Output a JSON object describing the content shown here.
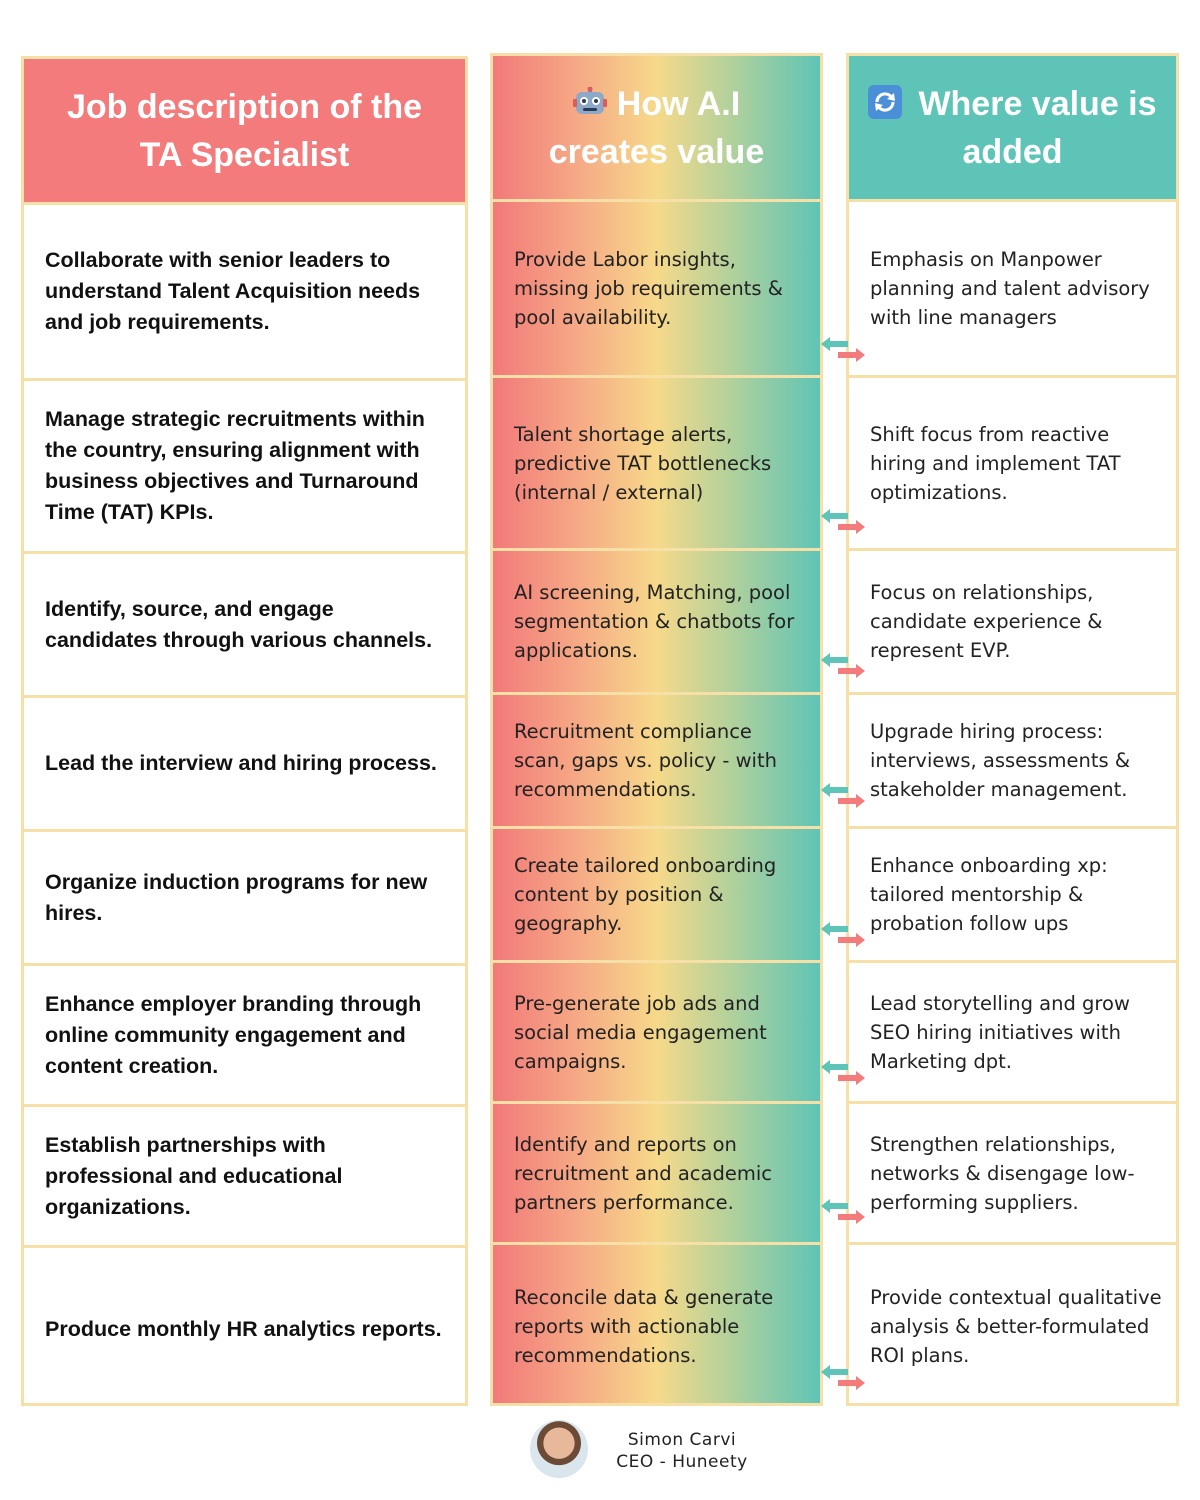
{
  "columns": {
    "job": {
      "title": "Job description of the TA Specialist",
      "color": "#f37b7c"
    },
    "ai": {
      "title": "How A.I creates value",
      "icon": "robot-icon"
    },
    "value": {
      "title": "Where value is added",
      "icon": "cycle-arrows-icon",
      "color": "#5ec4b7"
    }
  },
  "rows": [
    {
      "job": "Collaborate with senior leaders to understand Talent Acquisition needs and job requirements.",
      "ai": "Provide Labor insights, missing job requirements & pool availability.",
      "value": "Emphasis on Manpower planning and talent advisory with line managers"
    },
    {
      "job": "Manage strategic recruitments within the country, ensuring alignment with business objectives and Turnaround Time (TAT) KPIs.",
      "ai": " Talent shortage alerts, predictive TAT bottlenecks (internal / external)",
      "value": "Shift focus from reactive hiring and implement TAT optimizations."
    },
    {
      "job": "Identify, source, and engage candidates through various channels.",
      "ai": "AI screening, Matching, pool segmentation & chatbots for applications.",
      "value": "Focus on relationships, candidate experience & represent EVP."
    },
    {
      "job": "Lead the interview and hiring process.",
      "ai": "Recruitment compliance scan, gaps vs. policy - with recommendations.",
      "value": "Upgrade hiring process: interviews, assessments & stakeholder management."
    },
    {
      "job": "Organize induction programs for new hires.",
      "ai": "Create tailored onboarding content by position & geography.",
      "value": "Enhance onboarding xp: tailored mentorship & probation follow ups"
    },
    {
      "job": "Enhance employer branding through online community engagement and content creation.",
      "ai": "Pre-generate job ads and social media engagement campaigns.",
      "value": "Lead storytelling and grow SEO hiring initiatives with Marketing dpt."
    },
    {
      "job": "Establish partnerships with professional and educational organizations.",
      "ai": "Identify and reports on recruitment and academic partners performance.",
      "value": "Strengthen relationships, networks & disengage low-performing suppliers."
    },
    {
      "job": "Produce monthly HR analytics reports.",
      "ai": "Reconcile data & generate reports with actionable recommendations.",
      "value": "Provide contextual qualitative analysis & better-formulated ROI plans."
    }
  ],
  "colors": {
    "border": "#f7dfa8",
    "arrow_teal": "#5ec4b7",
    "arrow_red": "#f37b7c"
  },
  "footer": {
    "name": "Simon Carvi",
    "role": "CEO - Huneety"
  }
}
